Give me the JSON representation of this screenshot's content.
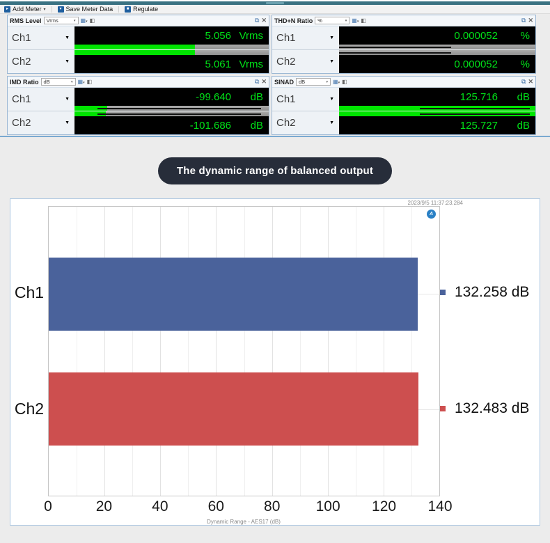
{
  "toolbar": {
    "add_meter": "Add Meter",
    "save_meter_data": "Save Meter Data",
    "regulate": "Regulate"
  },
  "meters": {
    "panels": [
      {
        "title": "RMS Level",
        "unit_selector": "Vrms",
        "channels": [
          {
            "label": "Ch1",
            "value": "5.056",
            "unit": "Vrms",
            "bar": {
              "green": 62,
              "line_start": 0,
              "line_len": 0
            }
          },
          {
            "label": "Ch2",
            "value": "5.061",
            "unit": "Vrms",
            "bar": {
              "green": 62,
              "line_start": 0,
              "line_len": 0
            }
          }
        ]
      },
      {
        "title": "THD+N Ratio",
        "unit_selector": "%",
        "channels": [
          {
            "label": "Ch1",
            "value": "0.000052",
            "unit": "%",
            "bar": {
              "green": 0,
              "line_start": 0,
              "line_len": 57
            }
          },
          {
            "label": "Ch2",
            "value": "0.000052",
            "unit": "%",
            "bar": {
              "green": 0,
              "line_start": 0,
              "line_len": 57
            }
          }
        ]
      },
      {
        "title": "IMD Ratio",
        "unit_selector": "dB",
        "channels": [
          {
            "label": "Ch1",
            "value": "-99.640",
            "unit": "dB",
            "bar": {
              "green": 17,
              "line_start": 12,
              "line_len": 84
            }
          },
          {
            "label": "Ch2",
            "value": "-101.686",
            "unit": "dB",
            "bar": {
              "green": 16,
              "line_start": 12,
              "line_len": 84
            }
          }
        ]
      },
      {
        "title": "SINAD",
        "unit_selector": "dB",
        "channels": [
          {
            "label": "Ch1",
            "value": "125.716",
            "unit": "dB",
            "bar": {
              "green": 100,
              "line_start": 41,
              "line_len": 56
            }
          },
          {
            "label": "Ch2",
            "value": "125.727",
            "unit": "dB",
            "bar": {
              "green": 100,
              "line_start": 41,
              "line_len": 56
            }
          }
        ]
      }
    ],
    "meter_green": "#00e118",
    "bar_green": "#00e400"
  },
  "caption": {
    "text": "The dynamic range of balanced output"
  },
  "chart_data": {
    "type": "bar",
    "orientation": "horizontal",
    "timestamp": "2023/9/5 11:37:23.284",
    "categories": [
      "Ch1",
      "Ch2"
    ],
    "bars": [
      {
        "label": "Ch1",
        "value": 132.258,
        "display": "132.258  dB",
        "color": "#4a629b"
      },
      {
        "label": "Ch2",
        "value": 132.483,
        "display": "132.483  dB",
        "color": "#cd4f4f"
      }
    ],
    "xlabel": "Dynamic Range - AES17 (dB)",
    "xlim": [
      0,
      140
    ],
    "xticks": [
      0,
      20,
      40,
      60,
      80,
      100,
      120,
      140
    ],
    "minor_step": 10,
    "grid": true,
    "legend_position": "right",
    "logo": "A"
  }
}
